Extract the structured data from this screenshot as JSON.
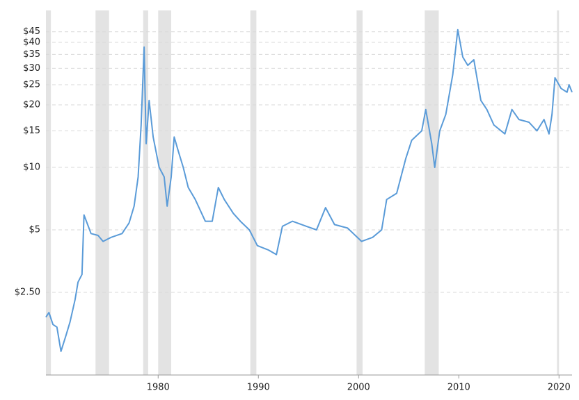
{
  "chart_data": {
    "type": "line",
    "log_scale_y": true,
    "grid": true,
    "xlim": [
      1968.8,
      2021.3
    ],
    "ylim": [
      1,
      57
    ],
    "xticks": [
      1980,
      1990,
      2000,
      2010,
      2020
    ],
    "yticks": [
      {
        "value": 2.5,
        "label": "$2.50"
      },
      {
        "value": 5,
        "label": "$5"
      },
      {
        "value": 10,
        "label": "$10"
      },
      {
        "value": 15,
        "label": "$15"
      },
      {
        "value": 20,
        "label": "$20"
      },
      {
        "value": 25,
        "label": "$25"
      },
      {
        "value": 30,
        "label": "$30"
      },
      {
        "value": 35,
        "label": "$35"
      },
      {
        "value": 40,
        "label": "$40"
      },
      {
        "value": 45,
        "label": "$45"
      }
    ],
    "shaded_periods": [
      [
        1968.8,
        1969.3
      ],
      [
        1973.75,
        1975.1
      ],
      [
        1978.5,
        1979.0
      ],
      [
        1980.0,
        1981.3
      ],
      [
        1989.2,
        1989.8
      ],
      [
        1999.8,
        2000.4
      ],
      [
        2006.6,
        2008.0
      ],
      [
        2019.8,
        2020.0
      ]
    ],
    "shade_color": "#e3e3e3",
    "x": [
      1968.8,
      1969.1,
      1969.5,
      1969.9,
      1970.3,
      1970.8,
      1971.2,
      1971.7,
      1972.0,
      1972.4,
      1972.6,
      1973.3,
      1974.0,
      1974.5,
      1975.3,
      1976.4,
      1977.1,
      1977.6,
      1978.0,
      1978.3,
      1978.6,
      1978.8,
      1979.1,
      1979.5,
      1980.1,
      1980.6,
      1980.9,
      1981.3,
      1981.6,
      1982.0,
      1982.5,
      1983.0,
      1983.7,
      1984.7,
      1985.4,
      1986.0,
      1986.6,
      1987.5,
      1988.2,
      1989.1,
      1989.9,
      1991.0,
      1991.8,
      1992.4,
      1993.4,
      1994.8,
      1995.8,
      1996.7,
      1997.6,
      1998.9,
      2000.3,
      2001.4,
      2002.3,
      2002.8,
      2003.8,
      2004.7,
      2005.3,
      2006.3,
      2006.7,
      2007.3,
      2007.6,
      2008.1,
      2008.7,
      2009.4,
      2009.9,
      2010.4,
      2010.9,
      2011.5,
      2012.2,
      2012.8,
      2013.5,
      2014.6,
      2015.3,
      2016.0,
      2017.0,
      2017.8,
      2018.5,
      2019.0,
      2019.3,
      2019.6,
      2020.2,
      2020.8,
      2021.0,
      2021.3
    ],
    "series": [
      {
        "color": "#5a9bd8",
        "values": [
          1.9,
          2.0,
          1.75,
          1.7,
          1.3,
          1.55,
          1.8,
          2.3,
          2.8,
          3.05,
          5.9,
          4.8,
          4.7,
          4.4,
          4.6,
          4.8,
          5.4,
          6.5,
          9,
          16,
          38,
          13,
          21,
          14,
          10,
          9,
          6.5,
          9,
          14,
          12,
          10,
          8,
          7,
          5.5,
          5.5,
          8,
          7,
          6,
          5.5,
          5,
          4.2,
          4,
          3.8,
          5.2,
          5.5,
          5.2,
          5,
          6.4,
          5.3,
          5.1,
          4.4,
          4.6,
          5,
          7,
          7.5,
          11,
          13.5,
          15,
          19,
          13,
          10,
          15,
          18,
          28,
          46,
          34,
          31,
          33,
          21,
          19,
          16,
          14.5,
          19,
          17,
          16.5,
          15,
          17,
          14.5,
          18,
          27,
          24,
          23,
          25,
          23
        ]
      }
    ]
  }
}
